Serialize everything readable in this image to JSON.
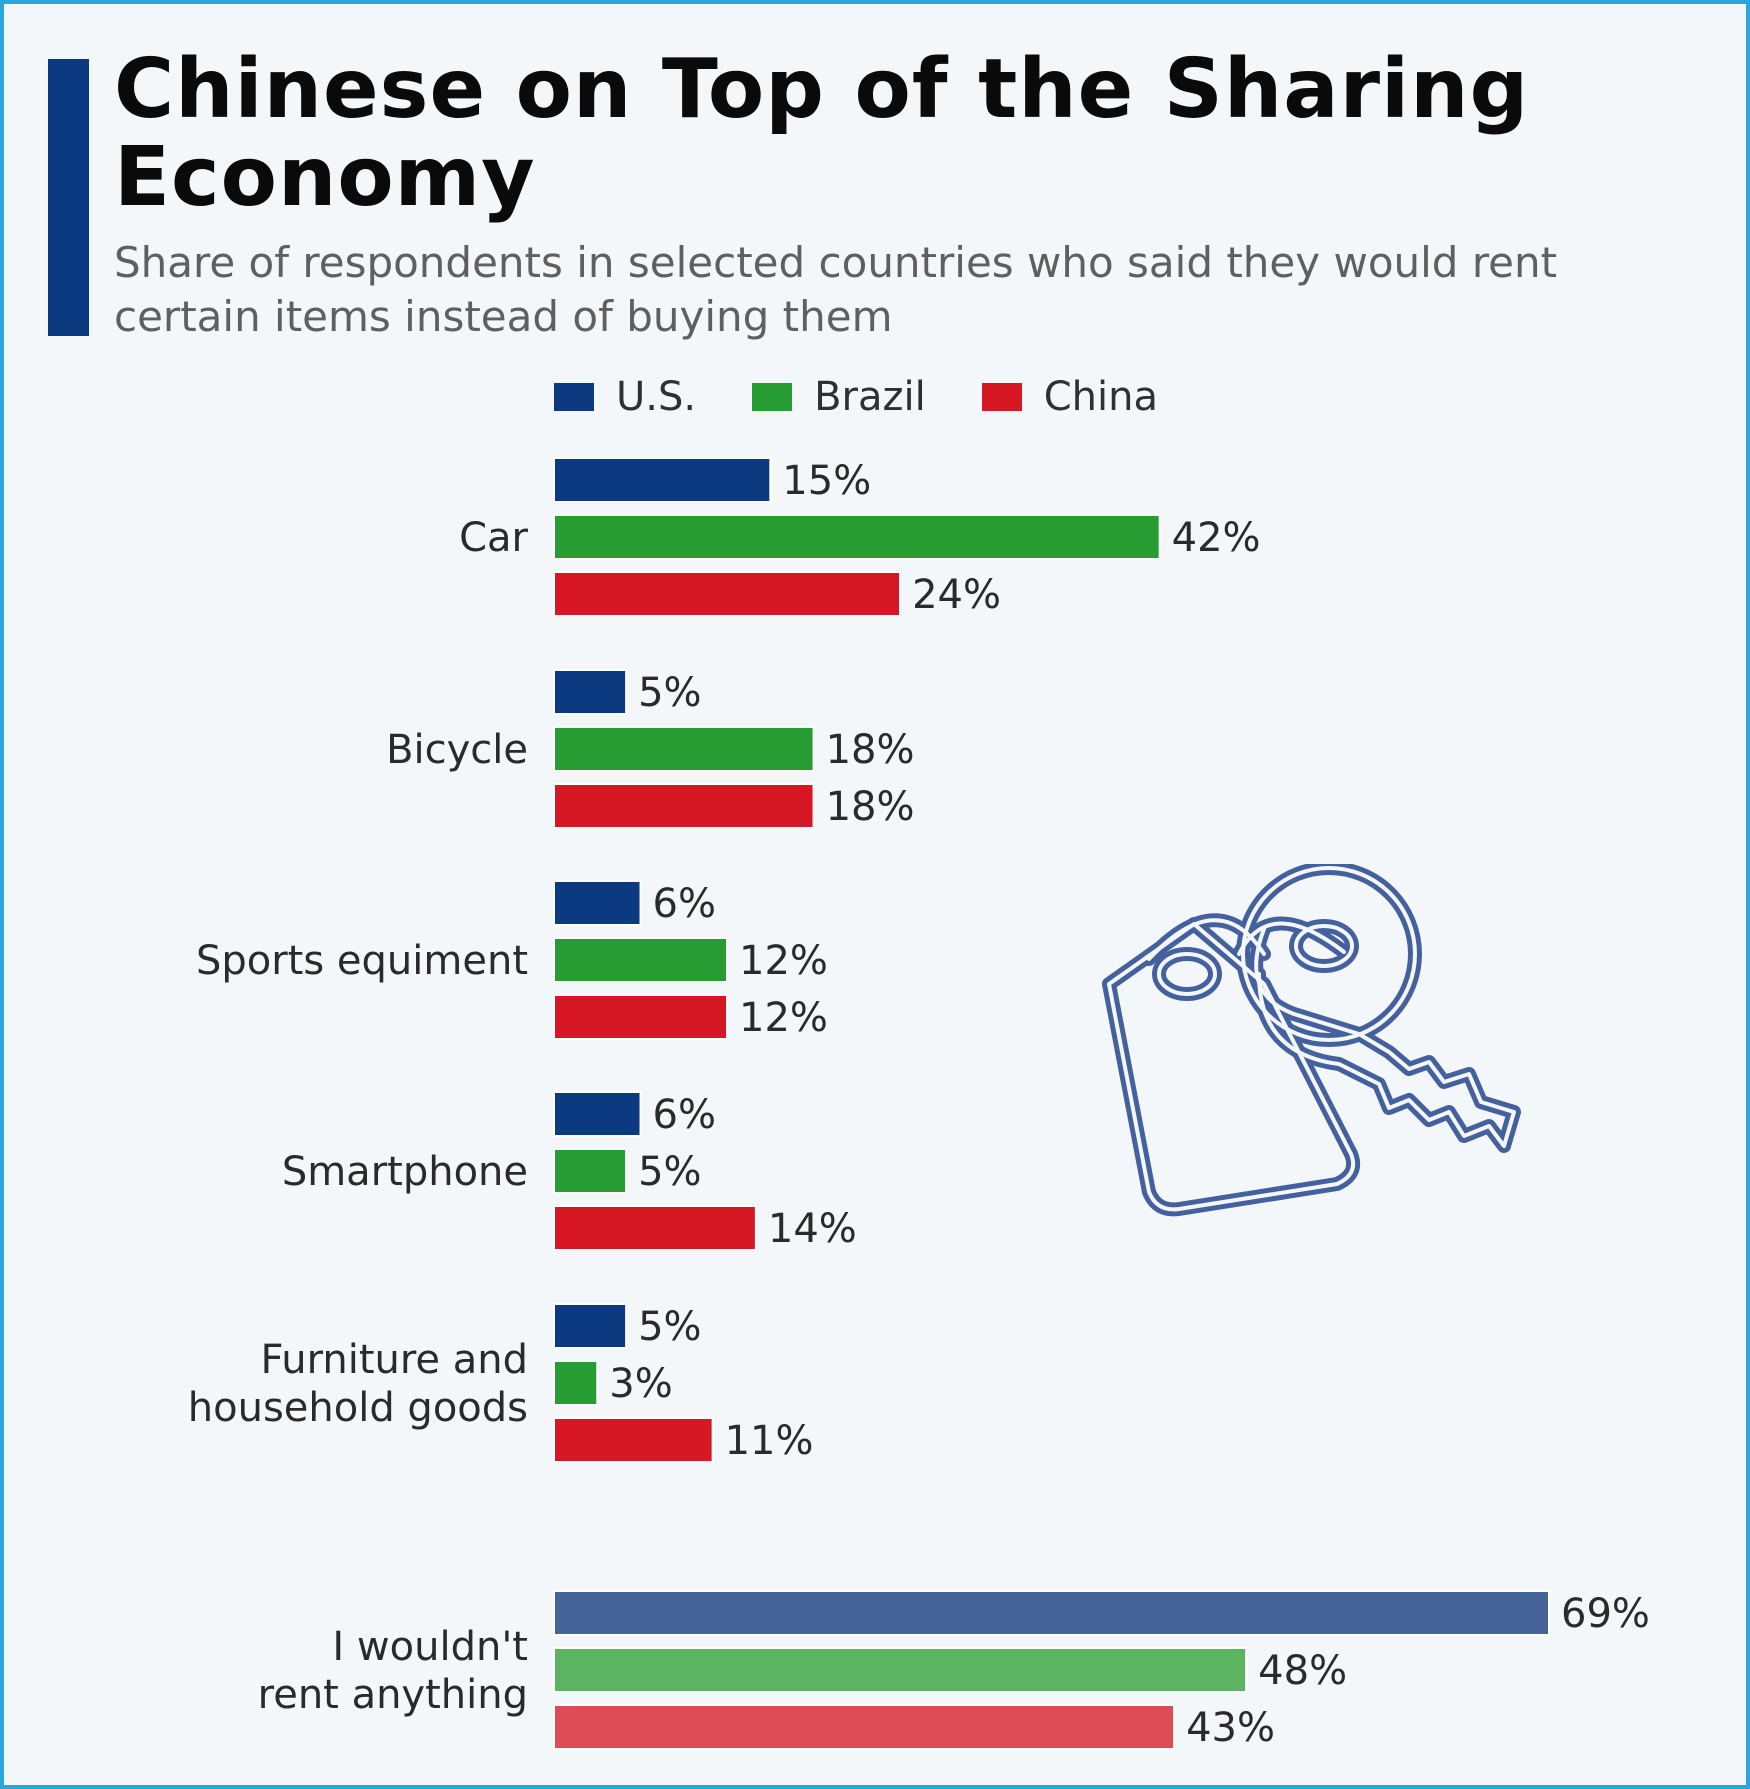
{
  "title": "Chinese on Top of the Sharing Economy",
  "subtitle": "Share of respondents in selected countries who said they would rent certain items instead of buying them",
  "colors": {
    "us": "#0c3a80",
    "brazil": "#269c32",
    "china": "#d51824",
    "us_light": "#45649a",
    "brazil_light": "#5cb462",
    "china_light": "#dd4d57",
    "frame": "#2aa6df",
    "background": "#f4f7fa"
  },
  "illustration": {
    "icon": "key-with-tag-icon"
  },
  "chart_data": {
    "type": "bar",
    "orientation": "horizontal",
    "value_suffix": "%",
    "legend_position": "top",
    "grid": false,
    "xlim": [
      0,
      69
    ],
    "categories": [
      [
        "Car"
      ],
      [
        "Bicycle"
      ],
      [
        "Sports equiment"
      ],
      [
        "Smartphone"
      ],
      [
        "Furniture and",
        "household goods"
      ],
      [
        "I wouldn't",
        "rent anything"
      ]
    ],
    "series": [
      {
        "name": "U.S.",
        "color": "#0c3a80",
        "values": [
          15,
          5,
          6,
          6,
          5,
          69
        ]
      },
      {
        "name": "Brazil",
        "color": "#269c32",
        "values": [
          42,
          18,
          12,
          5,
          3,
          48
        ]
      },
      {
        "name": "China",
        "color": "#d51824",
        "values": [
          24,
          18,
          12,
          14,
          11,
          43
        ]
      }
    ],
    "highlight_last_category_lighter": true
  }
}
